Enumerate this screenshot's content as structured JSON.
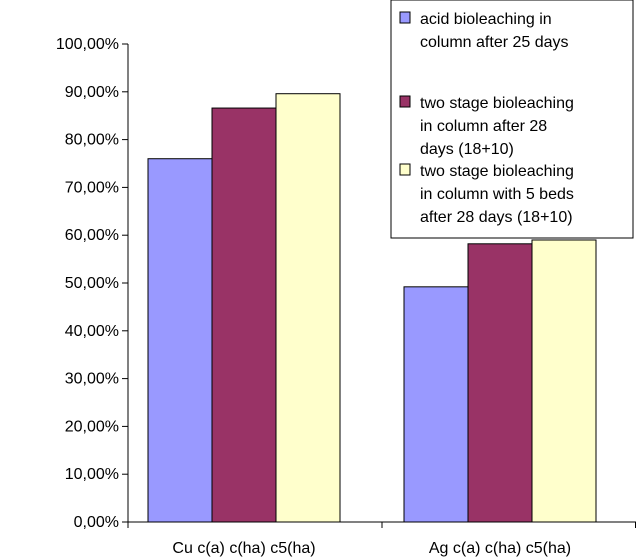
{
  "chart_data": {
    "type": "bar",
    "categories": [
      "Cu c(a) c(ha) c5(ha)",
      "Ag c(a) c(ha) c5(ha)"
    ],
    "series": [
      {
        "name": "acid bioleaching in column after 25 days",
        "color": "#9999ff",
        "values": [
          76.0,
          49.2
        ]
      },
      {
        "name": "two stage bioleaching in column after 28 days (18+10)",
        "color": "#993366",
        "values": [
          86.6,
          58.2
        ]
      },
      {
        "name": "two stage bioleaching in column with 5 beds after 28 days (18+10)",
        "color": "#ffffcc",
        "values": [
          89.6,
          59.0
        ]
      }
    ],
    "yticks": [
      "0,00%",
      "10,00%",
      "20,00%",
      "30,00%",
      "40,00%",
      "50,00%",
      "60,00%",
      "70,00%",
      "80,00%",
      "90,00%",
      "100,00%"
    ],
    "ylim": [
      0,
      100
    ],
    "grid": false,
    "legend_position": "top-right",
    "legend_lines": [
      [
        "acid bioleaching in",
        "column after 25 days"
      ],
      [
        "two stage bioleaching",
        "in column after 28",
        "days (18+10)"
      ],
      [
        "two stage bioleaching",
        "in column with 5 beds",
        "after 28 days (18+10)"
      ]
    ]
  }
}
